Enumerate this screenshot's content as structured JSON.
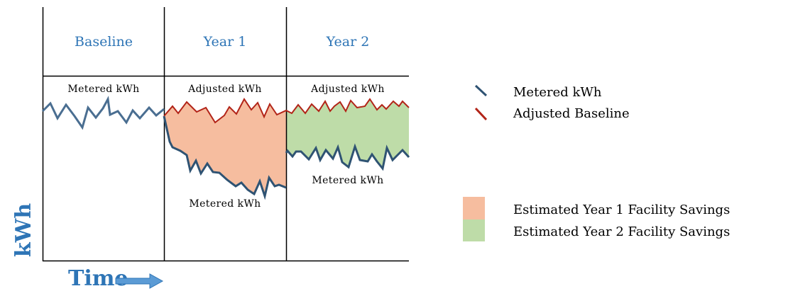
{
  "periods": [
    "Baseline",
    "Year 1",
    "Year 2"
  ],
  "series_labels": {
    "baseline_metered": "Metered kWh",
    "year1_adjusted": "Adjusted kWh",
    "year2_adjusted": "Adjusted kWh",
    "year1_metered": "Metered kWh",
    "year2_metered": "Metered kWh"
  },
  "legend": {
    "metered": "Metered kWh",
    "adjusted": "Adjusted Baseline",
    "savings_year1": "Estimated Year 1 Facility Savings",
    "savings_year2": "Estimated Year 2 Facility Savings"
  },
  "axes": {
    "y_label": "kWh",
    "x_label": "Time"
  },
  "colors": {
    "metered_line": "#2F5373",
    "baseline_line": "#4A6E91",
    "adjusted_line": "#B22418",
    "savings_year1": "#F6BD9F",
    "savings_year2": "#BEDCA8",
    "label_blue": "#2E75B6",
    "arrow_fill": "#5B9BD5",
    "arrow_stroke": "#2E75B6"
  }
}
